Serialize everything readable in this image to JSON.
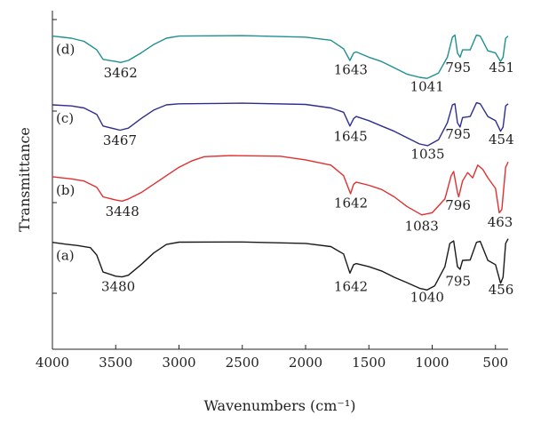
{
  "chart_data": {
    "type": "line",
    "xlabel": "Wavenumbers (cm⁻¹)",
    "ylabel": "Transmittance",
    "xlim": [
      4000,
      400
    ],
    "x_reversed": true,
    "x_ticks": [
      4000,
      3500,
      3000,
      2500,
      2000,
      1500,
      1000,
      500
    ],
    "grid": false,
    "series": [
      {
        "name": "(a)",
        "color": "#1a1a1a",
        "points": [
          [
            4000,
            0.805
          ],
          [
            3900,
            0.797
          ],
          [
            3800,
            0.79
          ],
          [
            3700,
            0.78
          ],
          [
            3650,
            0.745
          ],
          [
            3600,
            0.665
          ],
          [
            3500,
            0.645
          ],
          [
            3450,
            0.642
          ],
          [
            3400,
            0.65
          ],
          [
            3300,
            0.7
          ],
          [
            3200,
            0.755
          ],
          [
            3100,
            0.795
          ],
          [
            3000,
            0.806
          ],
          [
            2500,
            0.807
          ],
          [
            2000,
            0.8
          ],
          [
            1800,
            0.785
          ],
          [
            1700,
            0.75
          ],
          [
            1650,
            0.66
          ],
          [
            1620,
            0.7
          ],
          [
            1600,
            0.705
          ],
          [
            1500,
            0.69
          ],
          [
            1400,
            0.67
          ],
          [
            1300,
            0.64
          ],
          [
            1200,
            0.615
          ],
          [
            1100,
            0.588
          ],
          [
            1040,
            0.58
          ],
          [
            980,
            0.6
          ],
          [
            900,
            0.69
          ],
          [
            860,
            0.8
          ],
          [
            830,
            0.812
          ],
          [
            800,
            0.69
          ],
          [
            780,
            0.678
          ],
          [
            760,
            0.72
          ],
          [
            700,
            0.722
          ],
          [
            650,
            0.805
          ],
          [
            620,
            0.81
          ],
          [
            560,
            0.72
          ],
          [
            500,
            0.7
          ],
          [
            460,
            0.612
          ],
          [
            440,
            0.64
          ],
          [
            420,
            0.8
          ],
          [
            400,
            0.822
          ]
        ]
      },
      {
        "name": "(b)",
        "color": "#e03030",
        "points": [
          [
            4000,
            1.115
          ],
          [
            3850,
            1.105
          ],
          [
            3750,
            1.095
          ],
          [
            3650,
            1.065
          ],
          [
            3600,
            1.02
          ],
          [
            3500,
            1.005
          ],
          [
            3450,
            1.0
          ],
          [
            3400,
            1.01
          ],
          [
            3300,
            1.04
          ],
          [
            3200,
            1.08
          ],
          [
            3100,
            1.12
          ],
          [
            3000,
            1.16
          ],
          [
            2900,
            1.19
          ],
          [
            2800,
            1.21
          ],
          [
            2600,
            1.215
          ],
          [
            2200,
            1.212
          ],
          [
            2000,
            1.195
          ],
          [
            1800,
            1.17
          ],
          [
            1700,
            1.12
          ],
          [
            1645,
            1.035
          ],
          [
            1620,
            1.08
          ],
          [
            1600,
            1.09
          ],
          [
            1500,
            1.075
          ],
          [
            1400,
            1.055
          ],
          [
            1300,
            1.02
          ],
          [
            1200,
            0.975
          ],
          [
            1083,
            0.935
          ],
          [
            1000,
            0.945
          ],
          [
            900,
            1.01
          ],
          [
            850,
            1.12
          ],
          [
            830,
            1.14
          ],
          [
            800,
            1.04
          ],
          [
            790,
            1.02
          ],
          [
            760,
            1.095
          ],
          [
            720,
            1.135
          ],
          [
            680,
            1.11
          ],
          [
            640,
            1.17
          ],
          [
            600,
            1.15
          ],
          [
            560,
            1.11
          ],
          [
            500,
            1.06
          ],
          [
            470,
            0.945
          ],
          [
            450,
            0.96
          ],
          [
            420,
            1.16
          ],
          [
            400,
            1.185
          ]
        ]
      },
      {
        "name": "(c)",
        "color": "#2e2e8e",
        "points": [
          [
            4000,
            1.455
          ],
          [
            3850,
            1.45
          ],
          [
            3750,
            1.44
          ],
          [
            3650,
            1.41
          ],
          [
            3600,
            1.355
          ],
          [
            3500,
            1.34
          ],
          [
            3467,
            1.335
          ],
          [
            3400,
            1.345
          ],
          [
            3300,
            1.39
          ],
          [
            3200,
            1.43
          ],
          [
            3100,
            1.455
          ],
          [
            3000,
            1.46
          ],
          [
            2500,
            1.463
          ],
          [
            2000,
            1.457
          ],
          [
            1800,
            1.44
          ],
          [
            1700,
            1.42
          ],
          [
            1650,
            1.355
          ],
          [
            1620,
            1.39
          ],
          [
            1600,
            1.4
          ],
          [
            1500,
            1.38
          ],
          [
            1400,
            1.355
          ],
          [
            1300,
            1.33
          ],
          [
            1200,
            1.3
          ],
          [
            1100,
            1.27
          ],
          [
            1035,
            1.262
          ],
          [
            950,
            1.29
          ],
          [
            880,
            1.37
          ],
          [
            840,
            1.455
          ],
          [
            820,
            1.46
          ],
          [
            800,
            1.37
          ],
          [
            780,
            1.35
          ],
          [
            760,
            1.395
          ],
          [
            700,
            1.4
          ],
          [
            650,
            1.465
          ],
          [
            620,
            1.46
          ],
          [
            560,
            1.4
          ],
          [
            500,
            1.38
          ],
          [
            460,
            1.33
          ],
          [
            440,
            1.35
          ],
          [
            420,
            1.45
          ],
          [
            400,
            1.46
          ]
        ]
      },
      {
        "name": "(d)",
        "color": "#1f8f8f",
        "points": [
          [
            4000,
            1.78
          ],
          [
            3850,
            1.77
          ],
          [
            3750,
            1.755
          ],
          [
            3650,
            1.715
          ],
          [
            3600,
            1.67
          ],
          [
            3500,
            1.66
          ],
          [
            3462,
            1.655
          ],
          [
            3400,
            1.665
          ],
          [
            3300,
            1.7
          ],
          [
            3200,
            1.74
          ],
          [
            3100,
            1.77
          ],
          [
            3000,
            1.78
          ],
          [
            2500,
            1.782
          ],
          [
            2000,
            1.775
          ],
          [
            1800,
            1.76
          ],
          [
            1700,
            1.72
          ],
          [
            1650,
            1.665
          ],
          [
            1620,
            1.7
          ],
          [
            1600,
            1.705
          ],
          [
            1500,
            1.68
          ],
          [
            1400,
            1.66
          ],
          [
            1300,
            1.63
          ],
          [
            1200,
            1.6
          ],
          [
            1100,
            1.585
          ],
          [
            1041,
            1.58
          ],
          [
            950,
            1.605
          ],
          [
            880,
            1.68
          ],
          [
            840,
            1.775
          ],
          [
            820,
            1.785
          ],
          [
            800,
            1.7
          ],
          [
            780,
            1.68
          ],
          [
            760,
            1.715
          ],
          [
            700,
            1.715
          ],
          [
            650,
            1.785
          ],
          [
            620,
            1.78
          ],
          [
            560,
            1.71
          ],
          [
            500,
            1.7
          ],
          [
            460,
            1.66
          ],
          [
            440,
            1.68
          ],
          [
            420,
            1.77
          ],
          [
            400,
            1.78
          ]
        ]
      }
    ],
    "annotations": [
      {
        "text": "3480",
        "x": 3480,
        "y": 0.575,
        "series": "(a)"
      },
      {
        "text": "1642",
        "x": 1642,
        "y": 0.575,
        "series": "(a)"
      },
      {
        "text": "1040",
        "x": 1040,
        "y": 0.525,
        "series": "(a)"
      },
      {
        "text": "795",
        "x": 795,
        "y": 0.6,
        "series": "(a)"
      },
      {
        "text": "456",
        "x": 456,
        "y": 0.56,
        "series": "(a)"
      },
      {
        "text": "3448",
        "x": 3448,
        "y": 0.93,
        "series": "(b)"
      },
      {
        "text": "1642",
        "x": 1642,
        "y": 0.97,
        "series": "(b)"
      },
      {
        "text": "1083",
        "x": 1083,
        "y": 0.86,
        "series": "(b)"
      },
      {
        "text": "796",
        "x": 796,
        "y": 0.96,
        "series": "(b)"
      },
      {
        "text": "463",
        "x": 463,
        "y": 0.88,
        "series": "(b)"
      },
      {
        "text": "3467",
        "x": 3467,
        "y": 1.265,
        "series": "(c)"
      },
      {
        "text": "1645",
        "x": 1645,
        "y": 1.285,
        "series": "(c)"
      },
      {
        "text": "1035",
        "x": 1035,
        "y": 1.2,
        "series": "(c)"
      },
      {
        "text": "795",
        "x": 795,
        "y": 1.295,
        "series": "(c)"
      },
      {
        "text": "454",
        "x": 454,
        "y": 1.27,
        "series": "(c)"
      },
      {
        "text": "3462",
        "x": 3462,
        "y": 1.585,
        "series": "(d)"
      },
      {
        "text": "1643",
        "x": 1643,
        "y": 1.6,
        "series": "(d)"
      },
      {
        "text": "1041",
        "x": 1041,
        "y": 1.52,
        "series": "(d)"
      },
      {
        "text": "795",
        "x": 795,
        "y": 1.61,
        "series": "(d)"
      },
      {
        "text": "451",
        "x": 451,
        "y": 1.61,
        "series": "(d)"
      }
    ]
  }
}
